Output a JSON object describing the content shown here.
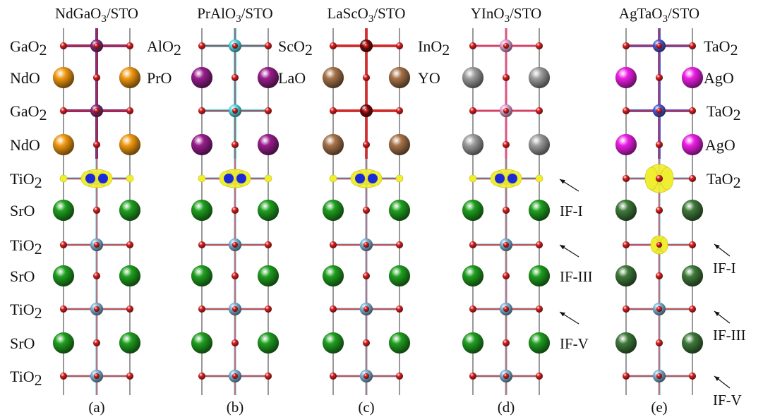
{
  "panels": [
    {
      "title": "NdGaO3/STO",
      "tag": "(a)",
      "left_labels": [
        "GaO2",
        "NdO",
        "GaO2",
        "NdO",
        "TiO2",
        "SrO",
        "TiO2",
        "SrO",
        "TiO2",
        "SrO",
        "TiO2"
      ],
      "right_labels": [],
      "b_color": "#8b2a78",
      "b_bond": "#6b2f8a",
      "a_color": "#f29a12",
      "sr_color": "#1fa01f",
      "layer_kinds": [
        "B",
        "A",
        "B",
        "A",
        "Ti",
        "Sr",
        "Ti",
        "Sr",
        "Ti",
        "Sr",
        "Ti"
      ],
      "bumps": []
    },
    {
      "title": "PrAlO3/STO",
      "tag": "(b)",
      "left_labels": [
        "AlO2",
        "PrO"
      ],
      "right_labels": [],
      "b_color": "#55e0ec",
      "b_bond": "#48d8e6",
      "a_color": "#9a1e8e",
      "sr_color": "#1fa01f",
      "layer_kinds": [
        "B",
        "A",
        "B",
        "A",
        "Ti",
        "Sr",
        "Ti",
        "Sr",
        "Ti",
        "Sr",
        "Ti"
      ],
      "bumps": []
    },
    {
      "title": "LaScO3/STO",
      "tag": "(c)",
      "left_labels": [
        "ScO2",
        "LaO"
      ],
      "right_labels": [],
      "b_color": "#7a0a0a",
      "b_bond": "#d04040",
      "a_color": "#a8744a",
      "sr_color": "#1fa01f",
      "layer_kinds": [
        "B",
        "A",
        "B",
        "A",
        "Ti",
        "Sr",
        "Ti",
        "Sr",
        "Ti",
        "Sr",
        "Ti"
      ],
      "bumps": []
    },
    {
      "title": "YInO3/STO",
      "tag": "(d)",
      "left_labels": [
        "InO2",
        "YO"
      ],
      "right_labels": [
        "IF-I",
        "IF-III",
        "IF-V"
      ],
      "b_color": "#e9a6d8",
      "b_bond": "#e6a0d6",
      "a_color": "#9e9e9e",
      "sr_color": "#1fa01f",
      "layer_kinds": [
        "B",
        "A",
        "B",
        "A",
        "Ti",
        "Sr",
        "Ti",
        "Sr",
        "Ti",
        "Sr",
        "Ti"
      ],
      "bumps": []
    },
    {
      "title": "AgTaO3/STO",
      "tag": "(e)",
      "left_labels": [],
      "right_labels": [
        "TaO2",
        "AgO",
        "TaO2",
        "AgO",
        "TaO2",
        "IF-I",
        "IF-III",
        "IF-V"
      ],
      "b_color": "#4d5ad8",
      "b_bond": "#5560d6",
      "a_color": "#ee1ee6",
      "sr_color": "#3f7a3a",
      "layer_kinds": [
        "B",
        "A",
        "B",
        "A",
        "Ti",
        "Sr",
        "Ti",
        "Sr",
        "Ti",
        "Sr",
        "Ti"
      ],
      "bumps": []
    }
  ],
  "colors": {
    "oxygen": "#e02020",
    "ti": "#7fb8da",
    "bond_ti": "#a9d8e8",
    "bond_o": "#d42424",
    "iso": "#f0ee30",
    "iso_core": "#1a2ad8",
    "axis": "#555555"
  }
}
